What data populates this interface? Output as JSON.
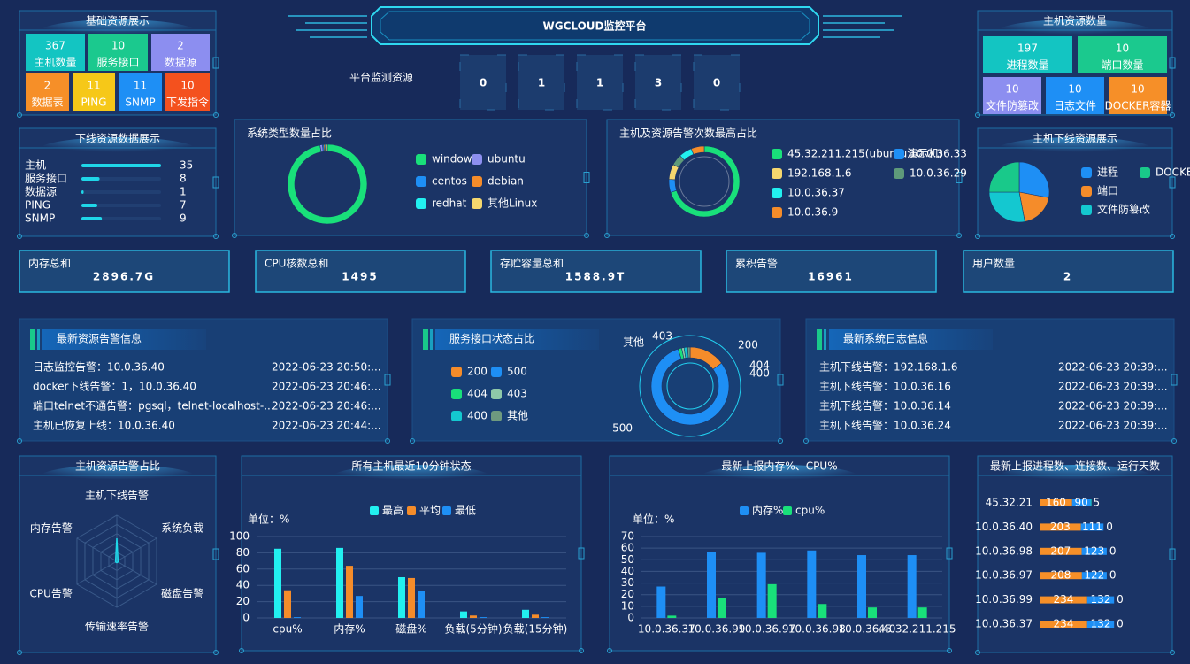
{
  "header": {
    "title": "WGCLOUD监控平台",
    "monitor_label": "平台监测资源",
    "monitor_digits": [
      0,
      1,
      1,
      3,
      0
    ]
  },
  "basic_resources": {
    "title": "基础资源展示",
    "tiles": [
      {
        "value": 367,
        "label": "主机数量",
        "color": "#13c5c2"
      },
      {
        "value": 10,
        "label": "服务接口",
        "color": "#1bc98e"
      },
      {
        "value": 2,
        "label": "数据源",
        "color": "#8c8ef0"
      },
      {
        "value": 2,
        "label": "数据表",
        "color": "#f68f28"
      },
      {
        "value": 11,
        "label": "PING",
        "color": "#f6c818"
      },
      {
        "value": 11,
        "label": "SNMP",
        "color": "#1e8ff5"
      },
      {
        "value": 10,
        "label": "下发指令",
        "color": "#f4511e"
      }
    ]
  },
  "host_resources": {
    "title": "主机资源数量",
    "tiles": [
      {
        "value": 197,
        "label": "进程数量",
        "color": "#13c5c2"
      },
      {
        "value": 10,
        "label": "端口数量",
        "color": "#1bc98e"
      },
      {
        "value": 10,
        "label": "文件防篡改",
        "color": "#8c8ef0"
      },
      {
        "value": 10,
        "label": "日志文件",
        "color": "#1e8ff5"
      },
      {
        "value": 10,
        "label": "DOCKER容器",
        "color": "#f68f28"
      }
    ]
  },
  "offline_data": {
    "title": "下线资源数据展示",
    "chart": {
      "type": "hbar",
      "categories": [
        "主机",
        "服务接口",
        "数据源",
        "PING",
        "SNMP"
      ],
      "values": [
        35,
        8,
        1,
        7,
        9
      ],
      "xlim": [
        0,
        35
      ],
      "color": "#1fd6e8"
    }
  },
  "system_types": {
    "title": "系统类型数量占比",
    "chart": {
      "type": "donut",
      "categories": [
        "windows",
        "ubuntu",
        "centos",
        "debian",
        "redhat",
        "其他Linux"
      ],
      "values": [
        97,
        1,
        0.5,
        0.5,
        0.5,
        0.5
      ],
      "colors": [
        "#19e07a",
        "#8d8ff0",
        "#1e8ff5",
        "#f58c2a",
        "#22f0f0",
        "#f5d76e"
      ]
    }
  },
  "alert_top": {
    "title": "主机及资源告警次数最高占比",
    "chart": {
      "type": "donut",
      "categories": [
        "45.32.211.215(ubuntu演示机)",
        "10.0.36.33",
        "192.168.1.6",
        "10.0.36.29",
        "10.0.36.37",
        "10.0.36.9"
      ],
      "values": [
        70,
        6,
        7,
        5,
        6,
        6
      ],
      "colors": [
        "#19e07a",
        "#1e8ff5",
        "#f5d76e",
        "#5e9a7a",
        "#22f0f0",
        "#f58c2a"
      ]
    }
  },
  "host_offline": {
    "title": "主机下线资源展示",
    "chart": {
      "type": "pie",
      "categories": [
        "进程",
        "端口",
        "文件防篡改",
        "DOCKER容器"
      ],
      "values": [
        28,
        19,
        28,
        25
      ],
      "colors": [
        "#1e8ff5",
        "#f58c2a",
        "#14c8d0",
        "#19c98a"
      ]
    }
  },
  "stats": [
    {
      "label": "内存总和",
      "value": "2896.7G"
    },
    {
      "label": "CPU核数总和",
      "value": 1495
    },
    {
      "label": "存贮容量总和",
      "value": "1588.9T"
    },
    {
      "label": "累积告警",
      "value": 16961
    },
    {
      "label": "用户数量",
      "value": 2
    }
  ],
  "latest_alerts": {
    "title": "最新资源告警信息",
    "rows": [
      [
        "日志监控告警：10.0.36.40",
        "2022-06-23 20:50:..."
      ],
      [
        "docker下线告警：1，10.0.36.40",
        "2022-06-23 20:46:..."
      ],
      [
        "端口telnet不通告警：pgsql，telnet-localhost-...",
        "2022-06-23 20:46:..."
      ],
      [
        "主机已恢复上线：10.0.36.40",
        "2022-06-23 20:44:..."
      ]
    ]
  },
  "service_status": {
    "title": "服务接口状态占比",
    "chart": {
      "type": "donut",
      "categories": [
        "200",
        "500",
        "404",
        "403",
        "400",
        "其他"
      ],
      "values": [
        15,
        80,
        1.5,
        1,
        1.5,
        1
      ],
      "colors": [
        "#f58c2a",
        "#1e8ff5",
        "#19e07a",
        "#8fc9a9",
        "#14c8d0",
        "#6f9a7f"
      ]
    }
  },
  "latest_logs": {
    "title": "最新系统日志信息",
    "rows": [
      [
        "主机下线告警：192.168.1.6",
        "2022-06-23 20:39:..."
      ],
      [
        "主机下线告警：10.0.36.16",
        "2022-06-23 20:39:..."
      ],
      [
        "主机下线告警：10.0.36.14",
        "2022-06-23 20:39:..."
      ],
      [
        "主机下线告警：10.0.36.24",
        "2022-06-23 20:39:..."
      ]
    ]
  },
  "host_alerts": {
    "title": "主机资源告警占比",
    "chart": {
      "type": "radar",
      "indicators": [
        "主机下线告警",
        "系统负载",
        "磁盘告警",
        "传输速率告警",
        "CPU告警",
        "内存告警"
      ],
      "values": [
        50,
        3,
        3,
        3,
        3,
        3
      ],
      "rlim": [
        0,
        100
      ],
      "color": "#1fd6e8"
    }
  },
  "recent_status": {
    "title": "所有主机最近10分钟状态",
    "chart": {
      "type": "bar",
      "unit_label": "单位：%",
      "categories": [
        "cpu%",
        "内存%",
        "磁盘%",
        "负载(5分钟)",
        "负载(15分钟)"
      ],
      "series": [
        {
          "name": "最高",
          "color": "#22f0f0",
          "values": [
            85,
            86,
            50,
            8,
            10
          ]
        },
        {
          "name": "平均",
          "color": "#f58c2a",
          "values": [
            34,
            64,
            49,
            3,
            4
          ]
        },
        {
          "name": "最低",
          "color": "#1e8ff5",
          "values": [
            1,
            27,
            33,
            1,
            1
          ]
        }
      ],
      "ylim": [
        0,
        100
      ],
      "yticks": [
        0,
        20,
        40,
        60,
        80,
        100
      ],
      "grid": true
    }
  },
  "latest_mem_cpu": {
    "title": "最新上报内存%、CPU%",
    "chart": {
      "type": "bar",
      "unit_label": "单位：%",
      "categories": [
        "10.0.36.37",
        "10.0.36.99",
        "10.0.36.97",
        "10.0.36.98",
        "10.0.36.40",
        "45.32.211.215"
      ],
      "series": [
        {
          "name": "内存%",
          "color": "#1e8ff5",
          "values": [
            27,
            57,
            56,
            58,
            54,
            54
          ]
        },
        {
          "name": "cpu%",
          "color": "#19e07a",
          "values": [
            2,
            17,
            29,
            12,
            9,
            9
          ]
        }
      ],
      "ylim": [
        0,
        70
      ],
      "yticks": [
        0,
        10,
        20,
        30,
        40,
        50,
        60,
        70
      ],
      "grid": true
    }
  },
  "latest_process": {
    "title": "最新上报进程数、连接数、运行天数",
    "chart": {
      "type": "stacked_hbar",
      "categories": [
        "45.32.21",
        "10.0.36.40",
        "10.0.36.98",
        "10.0.36.97",
        "10.0.36.99",
        "10.0.36.37"
      ],
      "series": [
        {
          "color": "#f68f28",
          "values": [
            160,
            203,
            207,
            208,
            234,
            234
          ]
        },
        {
          "color": "#1e8ff5",
          "values": [
            90,
            111,
            123,
            122,
            132,
            132
          ]
        },
        {
          "color": "#19c9c0",
          "values": [
            5,
            0,
            0,
            0,
            0,
            0
          ]
        }
      ],
      "xlim": [
        0,
        600
      ]
    }
  }
}
